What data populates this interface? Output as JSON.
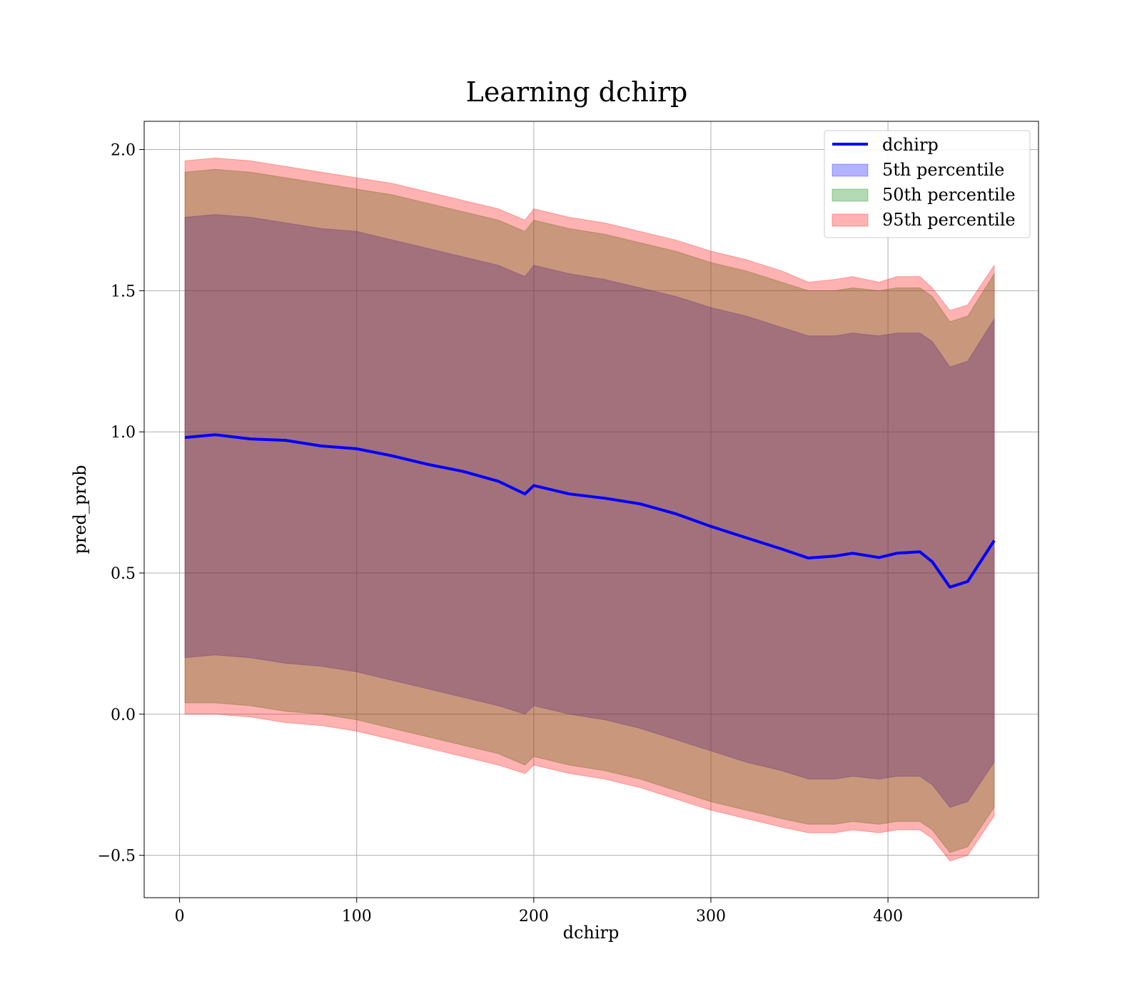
{
  "chart_data": {
    "type": "area",
    "title": "Learning dchirp",
    "xlabel": "dchirp",
    "ylabel": "pred_prob",
    "xlim": [
      -20,
      485
    ],
    "ylim": [
      -0.65,
      2.1
    ],
    "x_ticks": [
      0,
      100,
      200,
      300,
      400
    ],
    "y_ticks": [
      -0.5,
      0.0,
      0.5,
      1.0,
      1.5,
      2.0
    ],
    "x_tick_labels": [
      "0",
      "100",
      "200",
      "300",
      "400"
    ],
    "y_tick_labels": [
      "−0.5",
      "0.0",
      "0.5",
      "1.0",
      "1.5",
      "2.0"
    ],
    "grid": true,
    "legend_position": "top-right",
    "x": [
      3,
      20,
      40,
      60,
      80,
      100,
      120,
      140,
      160,
      180,
      195,
      200,
      220,
      240,
      260,
      280,
      300,
      320,
      340,
      355,
      370,
      380,
      395,
      405,
      418,
      425,
      435,
      445,
      460
    ],
    "line": {
      "name": "dchirp",
      "color": "#0000ff",
      "values": [
        0.98,
        0.99,
        0.975,
        0.97,
        0.95,
        0.94,
        0.915,
        0.885,
        0.86,
        0.825,
        0.78,
        0.81,
        0.78,
        0.765,
        0.745,
        0.71,
        0.665,
        0.625,
        0.585,
        0.553,
        0.56,
        0.57,
        0.555,
        0.57,
        0.575,
        0.54,
        0.45,
        0.47,
        0.615
      ]
    },
    "bands": [
      {
        "name": "5th percentile",
        "color": "#0000ff",
        "lower": [
          0.2,
          0.21,
          0.2,
          0.18,
          0.17,
          0.15,
          0.12,
          0.09,
          0.06,
          0.03,
          0.0,
          0.03,
          0.0,
          -0.02,
          -0.05,
          -0.09,
          -0.13,
          -0.17,
          -0.2,
          -0.23,
          -0.23,
          -0.22,
          -0.23,
          -0.22,
          -0.22,
          -0.25,
          -0.33,
          -0.31,
          -0.17
        ],
        "upper": [
          1.76,
          1.77,
          1.76,
          1.74,
          1.72,
          1.71,
          1.68,
          1.65,
          1.62,
          1.59,
          1.55,
          1.59,
          1.56,
          1.54,
          1.51,
          1.48,
          1.44,
          1.41,
          1.37,
          1.34,
          1.34,
          1.35,
          1.34,
          1.35,
          1.35,
          1.32,
          1.23,
          1.25,
          1.4
        ]
      },
      {
        "name": "50th percentile",
        "color": "#008000",
        "lower": [
          0.04,
          0.04,
          0.03,
          0.01,
          0.0,
          -0.02,
          -0.05,
          -0.08,
          -0.11,
          -0.14,
          -0.18,
          -0.15,
          -0.18,
          -0.2,
          -0.23,
          -0.27,
          -0.31,
          -0.34,
          -0.37,
          -0.39,
          -0.39,
          -0.38,
          -0.39,
          -0.38,
          -0.38,
          -0.41,
          -0.49,
          -0.47,
          -0.33
        ],
        "upper": [
          1.92,
          1.93,
          1.92,
          1.9,
          1.88,
          1.86,
          1.84,
          1.81,
          1.78,
          1.75,
          1.71,
          1.75,
          1.72,
          1.7,
          1.67,
          1.64,
          1.6,
          1.57,
          1.53,
          1.5,
          1.5,
          1.51,
          1.5,
          1.51,
          1.51,
          1.48,
          1.39,
          1.41,
          1.56
        ]
      },
      {
        "name": "95th percentile",
        "color": "#ff0000",
        "lower": [
          0.0,
          0.0,
          -0.01,
          -0.03,
          -0.04,
          -0.06,
          -0.09,
          -0.12,
          -0.15,
          -0.18,
          -0.21,
          -0.18,
          -0.21,
          -0.23,
          -0.26,
          -0.3,
          -0.34,
          -0.37,
          -0.4,
          -0.42,
          -0.42,
          -0.41,
          -0.42,
          -0.41,
          -0.41,
          -0.44,
          -0.52,
          -0.5,
          -0.36
        ],
        "upper": [
          1.96,
          1.97,
          1.96,
          1.94,
          1.92,
          1.9,
          1.88,
          1.85,
          1.82,
          1.79,
          1.75,
          1.79,
          1.76,
          1.74,
          1.71,
          1.68,
          1.64,
          1.61,
          1.57,
          1.53,
          1.54,
          1.55,
          1.53,
          1.55,
          1.55,
          1.51,
          1.43,
          1.45,
          1.59
        ]
      }
    ]
  }
}
